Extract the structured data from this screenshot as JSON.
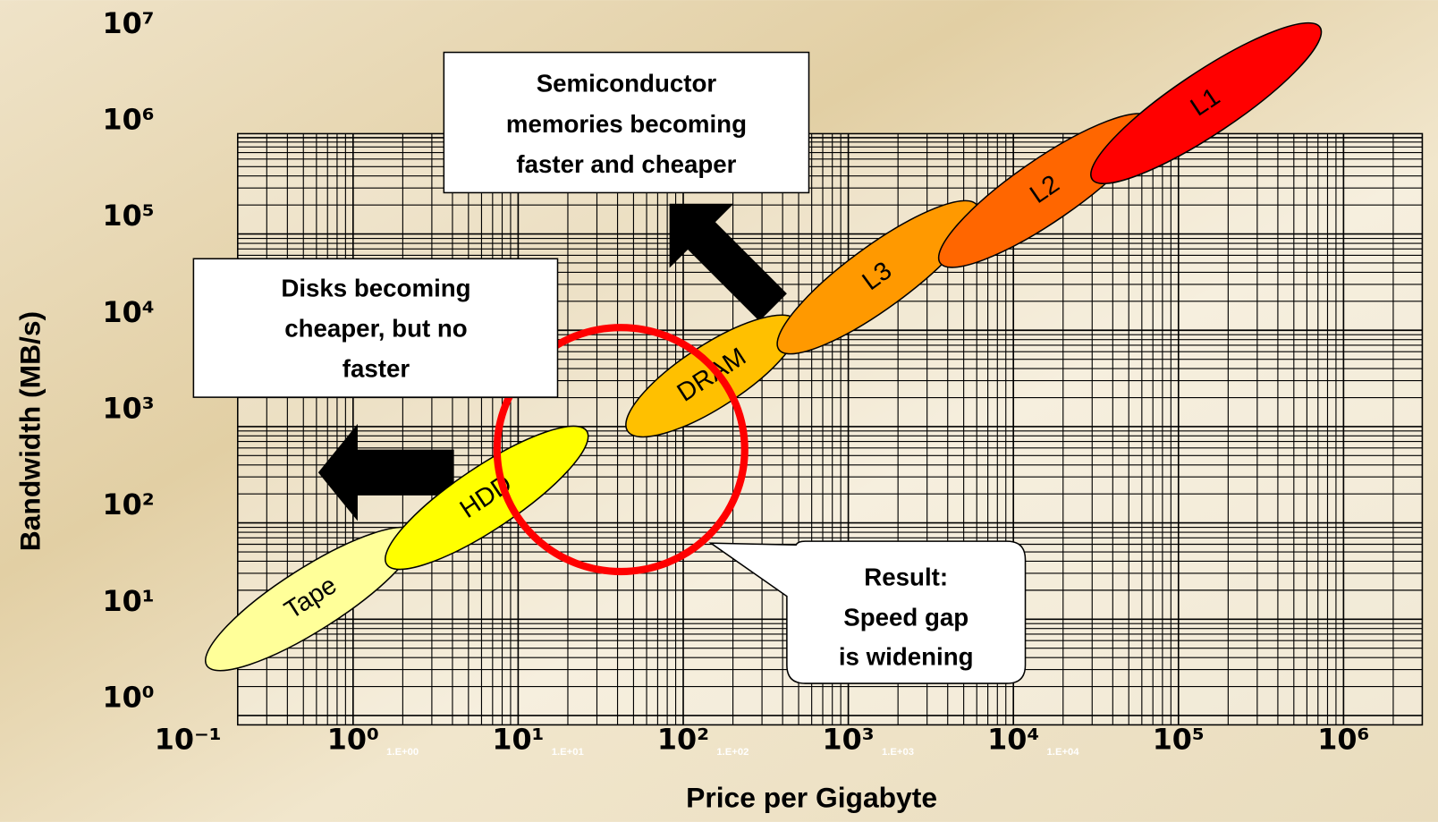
{
  "chart_data": {
    "type": "region",
    "x_label": "Price per Gigabyte",
    "y_label": "Bandwidth (MB/s)",
    "log_x": true,
    "log_y": true,
    "grid": true,
    "xlim": [
      0.2,
      3000000
    ],
    "ylim": [
      0.8,
      1100000
    ],
    "xticks": [
      {
        "value": 0.1,
        "label": "10⁻¹"
      },
      {
        "value": 1,
        "label": "10⁰"
      },
      {
        "value": 10,
        "label": "10¹"
      },
      {
        "value": 100,
        "label": "10²"
      },
      {
        "value": 1000,
        "label": "10³"
      },
      {
        "value": 10000,
        "label": "10⁴"
      },
      {
        "value": 100000,
        "label": "10⁵"
      },
      {
        "value": 1000000,
        "label": "10⁶"
      }
    ],
    "yticks": [
      {
        "value": 1,
        "label": "10⁰"
      },
      {
        "value": 10,
        "label": "10¹"
      },
      {
        "value": 100,
        "label": "10²"
      },
      {
        "value": 1000,
        "label": "10³"
      },
      {
        "value": 10000,
        "label": "10⁴"
      },
      {
        "value": 100000,
        "label": "10⁵"
      },
      {
        "value": 1000000,
        "label": "10⁶"
      },
      {
        "value": 10000000,
        "label": "10⁷"
      }
    ],
    "secondary_xtick_labels": [
      "1.E+00",
      "1.E+01",
      "1.E+02",
      "1.E+03",
      "1.E+04"
    ],
    "regions": [
      {
        "name": "Tape",
        "color": "#ffff99",
        "x": [
          0.13,
          2.4
        ],
        "y": [
          3.3,
          80
        ]
      },
      {
        "name": "HDD",
        "color": "#ffff00",
        "x": [
          1.6,
          26
        ],
        "y": [
          37,
          900
        ]
      },
      {
        "name": "DRAM",
        "color": "#ffc000",
        "x": [
          46,
          490
        ],
        "y": [
          900,
          12500
        ]
      },
      {
        "name": "L3",
        "color": "#ff9900",
        "x": [
          380,
          6000
        ],
        "y": [
          6300,
          200000
        ]
      },
      {
        "name": "L2",
        "color": "#ff6600",
        "x": [
          3600,
          68000
        ],
        "y": [
          50000,
          1600000
        ]
      },
      {
        "name": "L1",
        "color": "#ff0000",
        "x": [
          30000,
          720000
        ],
        "y": [
          370000,
          14000000
        ]
      }
    ],
    "annotations": [
      {
        "lines": [
          "Semiconductor",
          "memories becoming",
          "faster and cheaper"
        ]
      },
      {
        "lines": [
          "Disks becoming",
          "cheaper, but no",
          "faster"
        ]
      },
      {
        "lines": [
          "Result:",
          "Speed gap",
          "is widening"
        ]
      }
    ]
  }
}
